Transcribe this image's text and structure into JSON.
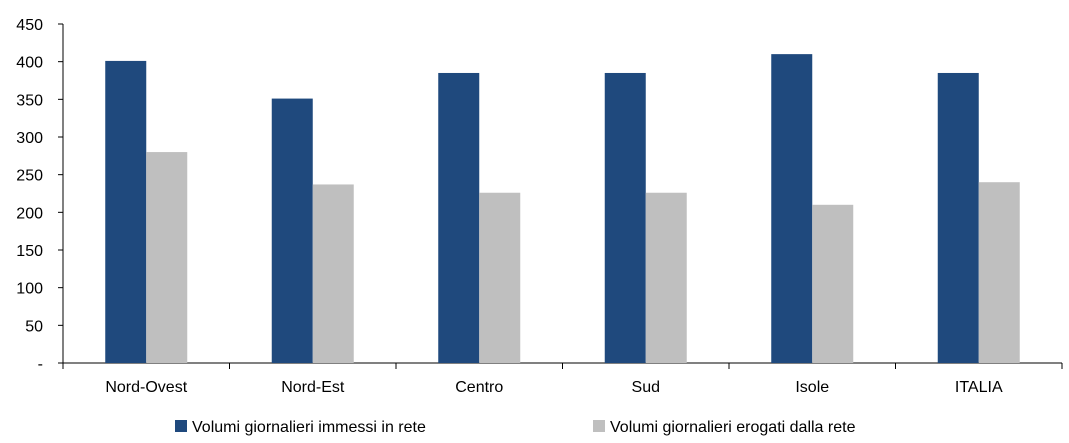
{
  "chart_data": {
    "type": "bar",
    "categories": [
      "Nord-Ovest",
      "Nord-Est",
      "Centro",
      "Sud",
      "Isole",
      "ITALIA"
    ],
    "series": [
      {
        "name": "Volumi giornalieri immessi in rete",
        "color": "#1F497D",
        "values": [
          401,
          351,
          385,
          385,
          410,
          385
        ]
      },
      {
        "name": "Volumi giornalieri erogati dalla rete",
        "color": "#BFBFBF",
        "values": [
          280,
          237,
          226,
          226,
          210,
          240
        ]
      }
    ],
    "y_ticks": [
      0,
      50,
      100,
      150,
      200,
      250,
      300,
      350,
      400,
      450
    ],
    "y_tick_labels": [
      "-",
      "50",
      "100",
      "150",
      "200",
      "250",
      "300",
      "350",
      "400",
      "450"
    ],
    "ylim": [
      0,
      450
    ],
    "grid": false,
    "legend_position": "bottom",
    "xlabel": "",
    "ylabel": "",
    "title": ""
  }
}
